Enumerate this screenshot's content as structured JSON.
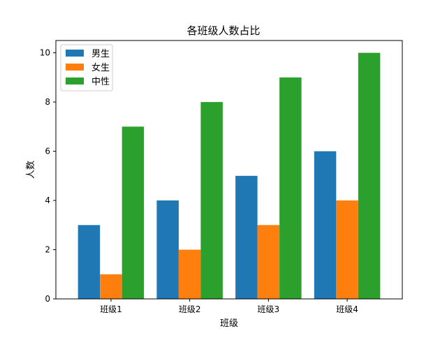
{
  "chart_data": {
    "type": "bar",
    "title": "各班级人数占比",
    "xlabel": "班级",
    "ylabel": "人数",
    "categories": [
      "班级1",
      "班级2",
      "班级3",
      "班级4"
    ],
    "series": [
      {
        "name": "男生",
        "values": [
          3,
          4,
          5,
          6
        ],
        "color": "#1f77b4"
      },
      {
        "name": "女生",
        "values": [
          1,
          2,
          3,
          4
        ],
        "color": "#ff7f0e"
      },
      {
        "name": "中性",
        "values": [
          7,
          8,
          9,
          10
        ],
        "color": "#2ca02c"
      }
    ],
    "ylim": [
      0,
      10.5
    ],
    "yticks": [
      0,
      2,
      4,
      6,
      8,
      10
    ],
    "grid": false,
    "legend_position": "top-left"
  }
}
